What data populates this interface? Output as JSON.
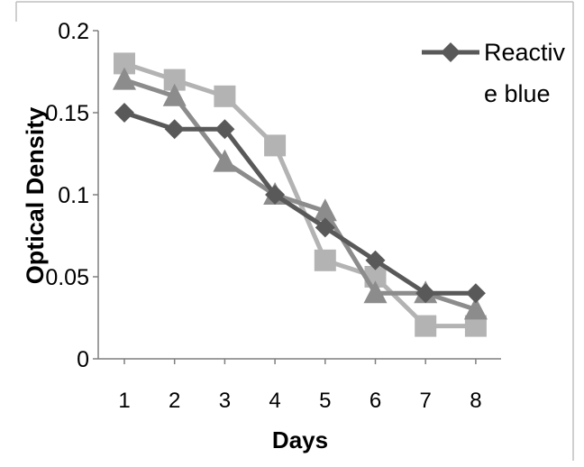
{
  "chart_data": {
    "type": "line",
    "xlabel": "Days",
    "ylabel": "Optical Density",
    "x": [
      1,
      2,
      3,
      4,
      5,
      6,
      7,
      8
    ],
    "x_tick_labels": [
      "1",
      "2",
      "3",
      "4",
      "5",
      "6",
      "7",
      "8"
    ],
    "ylim": [
      0,
      0.2
    ],
    "y_ticks": [
      0,
      0.05,
      0.1,
      0.15,
      0.2
    ],
    "y_tick_labels": [
      "0",
      "0.05",
      "0.1",
      "0.15",
      "0.2"
    ],
    "grid": false,
    "legend_placement": "top-right",
    "legend_lines": [
      "Reactiv",
      "e blue"
    ],
    "series": [
      {
        "name": "Reactive blue",
        "marker": "diamond",
        "color": "#595959",
        "values": [
          0.15,
          0.14,
          0.14,
          0.1,
          0.08,
          0.06,
          0.04,
          0.04
        ]
      },
      {
        "marker": "square",
        "color": "#b3b3b3",
        "values": [
          0.18,
          0.17,
          0.16,
          0.13,
          0.06,
          0.05,
          0.02,
          0.02
        ]
      },
      {
        "marker": "triangle",
        "color": "#8c8c8c",
        "values": [
          0.17,
          0.16,
          0.12,
          0.1,
          0.09,
          0.04,
          0.04,
          0.03
        ]
      }
    ]
  }
}
